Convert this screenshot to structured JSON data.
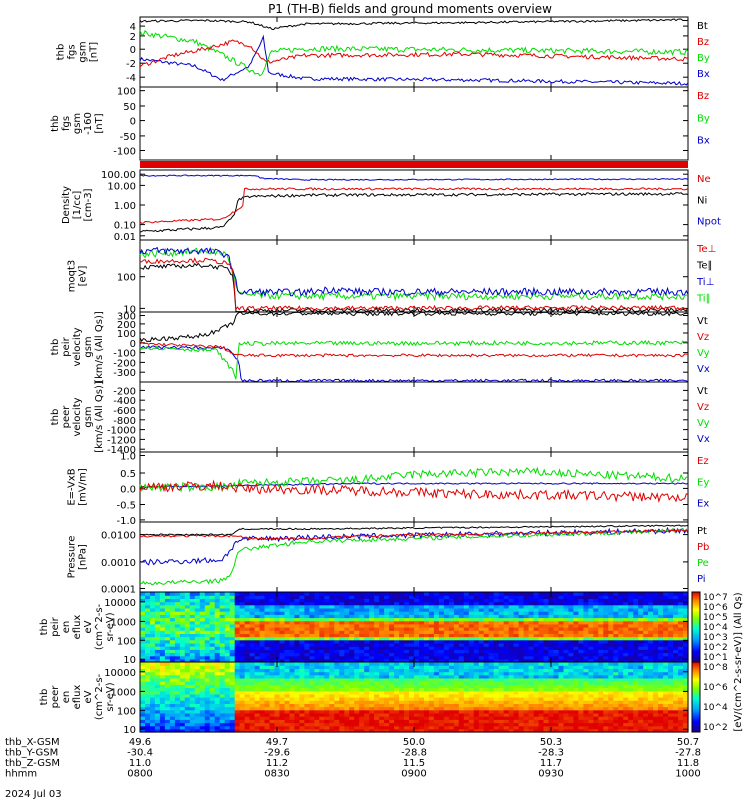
{
  "title": "P1 (TH-B) fields and ground moments overview",
  "date": "2024 Jul 03",
  "colors": {
    "black": "#000000",
    "red": "#e00000",
    "green": "#00dd00",
    "blue": "#0000cc"
  },
  "panels": [
    {
      "id": "fgs1",
      "ylabel": [
        "thb",
        "fgs",
        "gsm",
        "[nT]"
      ],
      "ticks": [
        "4",
        "2",
        "0",
        "-2",
        "-4"
      ],
      "legend": [
        {
          "text": "Bt",
          "color": "#000000"
        },
        {
          "text": "Bz",
          "color": "#e00000"
        },
        {
          "text": "By",
          "color": "#00dd00"
        },
        {
          "text": "Bx",
          "color": "#0000cc"
        }
      ]
    },
    {
      "id": "fgs2",
      "ylabel": [
        "thb",
        "fgs",
        "gsm",
        "-160",
        "[nT]"
      ],
      "ticks": [
        "100",
        "50",
        "0",
        "-50",
        "-100"
      ],
      "legend": [
        {
          "text": "Bz",
          "color": "#e00000"
        },
        {
          "text": "By",
          "color": "#00dd00"
        },
        {
          "text": "Bx",
          "color": "#0000cc"
        }
      ]
    },
    {
      "id": "density",
      "ylabel": [
        "Density",
        "[1/cc]",
        "[cm-3]"
      ],
      "ticks": [
        "100.00",
        "10.00",
        "1.00",
        "0.10",
        "0.01"
      ],
      "legend": [
        {
          "text": "Ne",
          "color": "#e00000"
        },
        {
          "text": "Ni",
          "color": "#000000"
        },
        {
          "text": "Npot",
          "color": "#0000cc"
        }
      ]
    },
    {
      "id": "temp",
      "ylabel": [
        "moqt3",
        "[eV]"
      ],
      "ticks": [
        "100",
        "10"
      ],
      "legend": [
        {
          "text": "Te⊥",
          "color": "#e00000"
        },
        {
          "text": "Te∥",
          "color": "#000000"
        },
        {
          "text": "Ti⊥",
          "color": "#0000cc"
        },
        {
          "text": "Ti∥",
          "color": "#00dd00"
        }
      ]
    },
    {
      "id": "vel1",
      "ylabel": [
        "thb",
        "peir",
        "velocity",
        "gsm",
        "[km/s (All Qs)]"
      ],
      "ticks": [
        "300",
        "200",
        "100",
        "0",
        "-100",
        "-200",
        "-300"
      ],
      "legend": [
        {
          "text": "Vt",
          "color": "#000000"
        },
        {
          "text": "Vz",
          "color": "#e00000"
        },
        {
          "text": "Vy",
          "color": "#00dd00"
        },
        {
          "text": "Vx",
          "color": "#0000cc"
        }
      ]
    },
    {
      "id": "vel2",
      "ylabel": [
        "thb",
        "peer",
        "velocity",
        "gsm",
        "[km/s (All Qs)]"
      ],
      "ticks": [
        "-200",
        "-400",
        "-600",
        "-800",
        "-1000",
        "-1200",
        "-1400"
      ],
      "legend": [
        {
          "text": "Vt",
          "color": "#000000"
        },
        {
          "text": "Vz",
          "color": "#e00000"
        },
        {
          "text": "Vy",
          "color": "#00dd00"
        },
        {
          "text": "Vx",
          "color": "#0000cc"
        }
      ]
    },
    {
      "id": "efield",
      "ylabel": [
        "E=-VxB",
        "[mV/m]"
      ],
      "ticks": [
        "1.0",
        "0.5",
        "0.0",
        "-0.5",
        "-1.0"
      ],
      "legend": [
        {
          "text": "Ez",
          "color": "#e00000"
        },
        {
          "text": "Ey",
          "color": "#00dd00"
        },
        {
          "text": "Ex",
          "color": "#0000cc"
        }
      ]
    },
    {
      "id": "pressure",
      "ylabel": [
        "Pressure",
        "[nPa]"
      ],
      "ticks": [
        "0.0100",
        "0.0010",
        "0.0001"
      ],
      "legend": [
        {
          "text": "Pt",
          "color": "#000000"
        },
        {
          "text": "Pb",
          "color": "#e00000"
        },
        {
          "text": "Pe",
          "color": "#00dd00"
        },
        {
          "text": "Pi",
          "color": "#0000cc"
        }
      ]
    },
    {
      "id": "ispec",
      "ylabel": [
        "thb",
        "peir",
        "en",
        "eflux",
        "eV",
        "(cm^2-s-",
        "sr-eV)"
      ],
      "ticks": [
        "10000",
        "1000",
        "100",
        "10"
      ]
    },
    {
      "id": "espec",
      "ylabel": [
        "thb",
        "peer",
        "en",
        "eflux",
        "eV",
        "(cm^2-s-",
        "sr-eV)"
      ],
      "ticks": [
        "10000",
        "1000",
        "100",
        "10"
      ]
    }
  ],
  "colorbars": [
    {
      "id": "cb-ions",
      "labels": [
        "10^7",
        "10^6",
        "10^5",
        "10^4",
        "10^3",
        "10^2",
        "10^1"
      ]
    },
    {
      "id": "cb-electrons",
      "labels": [
        "10^8",
        "10^6",
        "10^4",
        "10^2"
      ]
    }
  ],
  "colorbar_unit": "[eV/(cm^2-s-sr-eV)] (All Qs)",
  "xaxis": {
    "rows": [
      {
        "label": "thb_X-GSM",
        "values": [
          "49.6",
          "49.7",
          "50.0",
          "50.3",
          "50.7"
        ]
      },
      {
        "label": "thb_Y-GSM",
        "values": [
          "-30.4",
          "-29.6",
          "-28.8",
          "-28.3",
          "-27.8"
        ]
      },
      {
        "label": "thb_Z-GSM",
        "values": [
          "11.0",
          "11.2",
          "11.5",
          "11.7",
          "11.8"
        ]
      },
      {
        "label": "hhmm",
        "values": [
          "0800",
          "0830",
          "0900",
          "0930",
          "1000"
        ]
      }
    ]
  },
  "chart_data": [
    {
      "type": "line",
      "panel": "fgs1",
      "ylim": [
        -5,
        5
      ],
      "xlabel": "hhmm",
      "series": [
        {
          "name": "Bt",
          "values_approx": {
            "0800": 4.5,
            "0830": 3.9,
            "0900": 4.2,
            "0930": 4.6,
            "1000": 4.9
          }
        },
        {
          "name": "Bz",
          "values_approx": {
            "0800": -1.4,
            "0830": -0.6,
            "0900": -0.5,
            "0930": -1.1,
            "1000": -1.2
          }
        },
        {
          "name": "By",
          "values_approx": {
            "0800": 3.1,
            "0830": 0.9,
            "0900": 1.5,
            "0930": 0.9,
            "1000": 0.3
          }
        },
        {
          "name": "Bx",
          "values_approx": {
            "0800": -1.0,
            "0830": -3.6,
            "0900": -3.4,
            "0930": -3.8,
            "1000": -4.4
          }
        }
      ]
    },
    {
      "type": "line",
      "panel": "fgs2",
      "ylim": [
        -130,
        100
      ],
      "series": []
    },
    {
      "type": "line",
      "panel": "density",
      "yscale": "log",
      "ylim": [
        0.006,
        200
      ],
      "series": [
        {
          "name": "Ne",
          "values_approx": {
            "0800": 0.03,
            "0825": 0.3,
            "0830": 7,
            "0900": 7,
            "1000": 7
          }
        },
        {
          "name": "Ni",
          "values_approx": {
            "0800": 0.02,
            "0825": 0.15,
            "0830": 2,
            "0900": 3,
            "1000": 3.5
          }
        },
        {
          "name": "Npot",
          "values_approx": {
            "0830": 30,
            "0900": 25,
            "1000": 28
          }
        }
      ]
    },
    {
      "type": "line",
      "panel": "temp",
      "yscale": "log",
      "ylim": [
        8,
        800
      ],
      "series": [
        {
          "name": "Te⊥",
          "values_approx": {
            "0800": 80,
            "0825": 60,
            "0830": 10,
            "1000": 10
          }
        },
        {
          "name": "Te∥",
          "values_approx": {
            "0800": 75,
            "0830": 8,
            "1000": 8
          }
        },
        {
          "name": "Ti⊥",
          "values_approx": {
            "0800": 300,
            "0825": 200,
            "0830": 30,
            "0900": 28,
            "1000": 28
          }
        },
        {
          "name": "Ti∥",
          "values_approx": {
            "0800": 250,
            "0825": 150,
            "0830": 25,
            "0900": 22,
            "1000": 22
          }
        }
      ]
    },
    {
      "type": "line",
      "panel": "vel1",
      "ylim": [
        -310,
        310
      ],
      "series": [
        {
          "name": "Vt",
          "values_approx": {
            "0800": 80,
            "0825": 200,
            "0830": 310,
            "1000": 310
          }
        },
        {
          "name": "Vz",
          "values_approx": {
            "0800": 30,
            "0830": -60,
            "1000": -60
          }
        },
        {
          "name": "Vy",
          "values_approx": {
            "0800": 0,
            "0828": -300,
            "0830": 50,
            "1000": 50
          }
        },
        {
          "name": "Vx",
          "values_approx": {
            "0800": 0,
            "0830": -300,
            "1000": -300
          }
        }
      ]
    },
    {
      "type": "line",
      "panel": "vel2",
      "ylim": [
        -1500,
        -100
      ],
      "series": []
    },
    {
      "type": "line",
      "panel": "efield",
      "ylim": [
        -1.2,
        1.0
      ],
      "series": [
        {
          "name": "Ez",
          "values_approx": {
            "0800": 0.0,
            "0830": 0.1,
            "0900": -0.3,
            "0930": -0.3,
            "1000": -0.4
          }
        },
        {
          "name": "Ey",
          "values_approx": {
            "0800": 0.0,
            "0830": 0.3,
            "0900": 0.4,
            "0930": 0.6,
            "1000": 0.3
          }
        },
        {
          "name": "Ex",
          "values_approx": {
            "0800": 0.0,
            "0830": 0.05,
            "1000": 0.0
          }
        }
      ]
    },
    {
      "type": "line",
      "panel": "pressure",
      "yscale": "log",
      "ylim": [
        0.0001,
        0.02
      ],
      "series": [
        {
          "name": "Pt",
          "values_approx": {
            "0800": 0.009,
            "0830": 0.013,
            "1000": 0.015
          }
        },
        {
          "name": "Pb",
          "values_approx": {
            "0800": 0.008,
            "0830": 0.007,
            "0900": 0.008,
            "1000": 0.01
          }
        },
        {
          "name": "Pe",
          "values_approx": {
            "0800": 0.0002,
            "0825": 0.0005,
            "0830": 0.006,
            "1000": 0.012
          }
        },
        {
          "name": "Pi",
          "values_approx": {
            "0800": 0.002,
            "0830": 0.009,
            "1000": 0.012
          }
        }
      ]
    },
    {
      "type": "heatmap",
      "panel": "ispec",
      "yscale": "log",
      "ylim": [
        8,
        20000
      ],
      "description_band_eV": [
        300,
        1000
      ]
    },
    {
      "type": "heatmap",
      "panel": "espec",
      "yscale": "log",
      "ylim": [
        8,
        20000
      ]
    }
  ]
}
